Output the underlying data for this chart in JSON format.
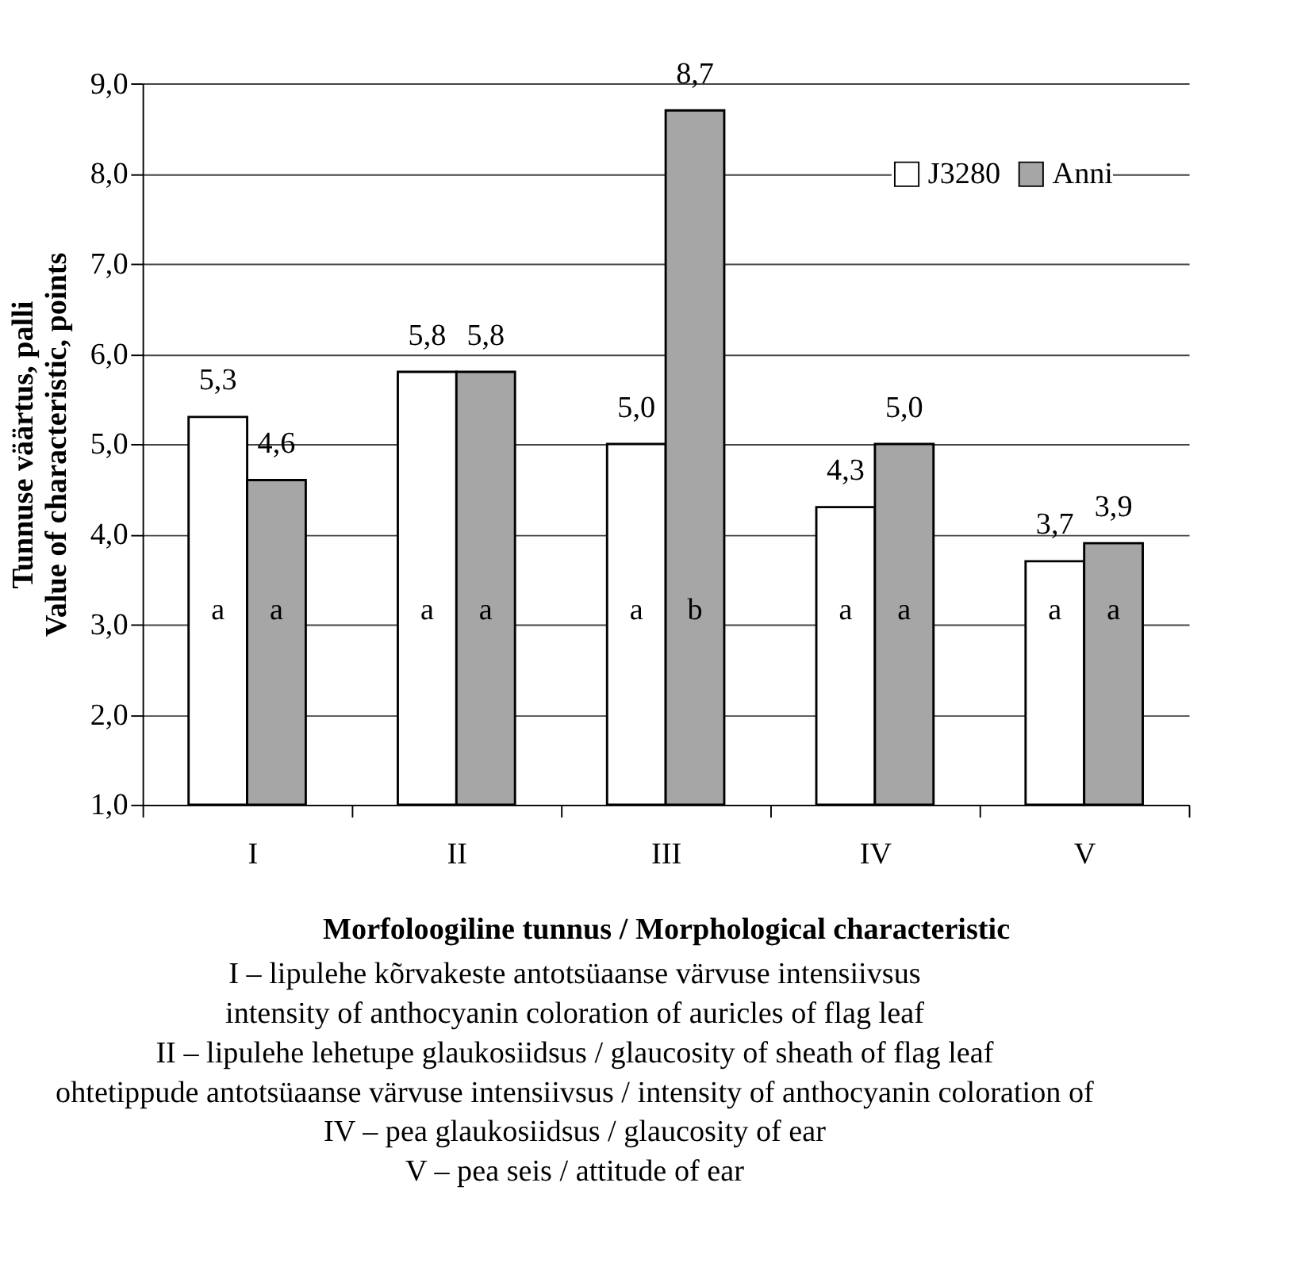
{
  "chart_data": {
    "type": "bar",
    "ylabel": "Tunnuse väärtus, palli\nValue of characteristic, points",
    "xlabel": "Morfoloogiline tunnus / Morphological characteristic",
    "categories": [
      "I",
      "II",
      "III",
      "IV",
      "V"
    ],
    "series": [
      {
        "name": "J3280",
        "color": "#ffffff",
        "values": [
          5.3,
          5.8,
          5.0,
          4.3,
          3.7
        ],
        "value_labels": [
          "5,3",
          "5,8",
          "5,0",
          "4,3",
          "3,7"
        ]
      },
      {
        "name": "Anni",
        "color": "#a6a6a6",
        "values": [
          4.6,
          5.8,
          8.7,
          5.0,
          3.9
        ],
        "value_labels": [
          "4,6",
          "5,8",
          "8,7",
          "5,0",
          "3,9"
        ]
      }
    ],
    "ylim": [
      1,
      9
    ],
    "yticks": [
      {
        "value": 1,
        "label": "1,0"
      },
      {
        "value": 2,
        "label": "2,0"
      },
      {
        "value": 3,
        "label": "3,0"
      },
      {
        "value": 4,
        "label": "4,0"
      },
      {
        "value": 5,
        "label": "5,0"
      },
      {
        "value": 6,
        "label": "6,0"
      },
      {
        "value": 7,
        "label": "7,0"
      },
      {
        "value": 8,
        "label": "8,0"
      },
      {
        "value": 9,
        "label": "9,0"
      }
    ],
    "grid": "y",
    "legend": "top right",
    "annotations": [
      "a",
      "a",
      "a",
      "a",
      "a",
      "b",
      "a",
      "a",
      "a",
      "a",
      "I – lipulehe kõrvakeste antotsüaanse värvuse intensiivsus",
      "intensity of anthocyanin coloration of auricles of flag leaf",
      "II – lipulehe lehetupe glaukosiidsus / glaucosity of sheath of flag leaf",
      "ohtetippude antotsüaanse värvuse intensiivsus / intensity of anthocyanin coloration of",
      "IV – pea glaukosiidsus / glaucosity of ear",
      "V – pea seis / attitude of ear"
    ]
  }
}
